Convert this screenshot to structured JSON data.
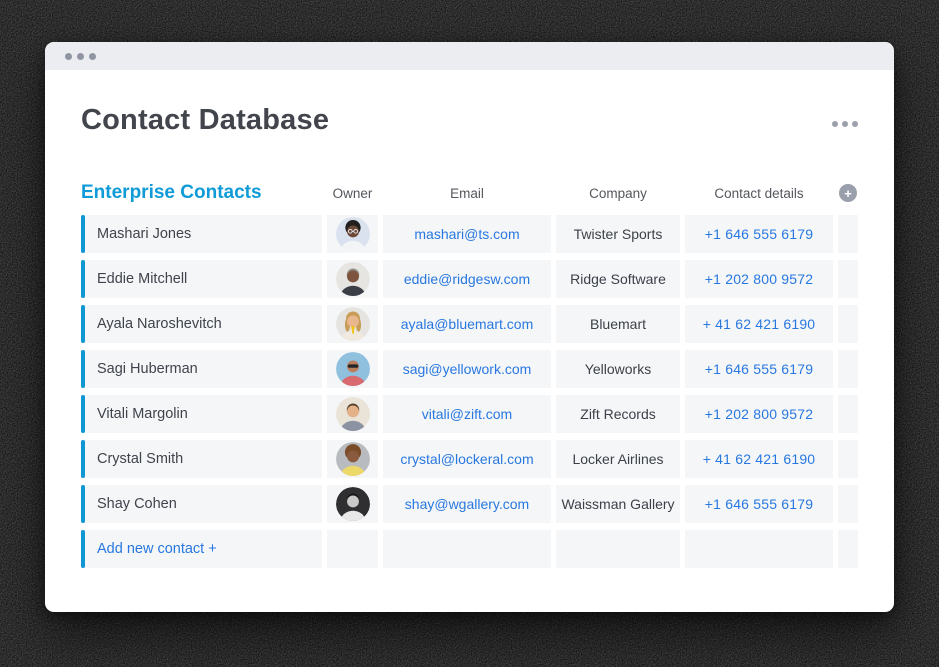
{
  "colors": {
    "board_blue": "#0f9bd7",
    "row_accent": "#0f97d4",
    "link_blue": "#2878e0",
    "row_bg": "#f5f6f8",
    "plus_bg": "#9aa0ab"
  },
  "window": {
    "titlebar_icon": "window-dots"
  },
  "header": {
    "title": "Contact Database",
    "menu_icon": "ellipsis-horizontal"
  },
  "board": {
    "title": "Enterprise Contacts",
    "columns": {
      "owner": "Owner",
      "email": "Email",
      "company": "Company",
      "contact": "Contact details"
    },
    "add_column_icon": "plus",
    "add_row_label": "Add new contact +",
    "rows": [
      {
        "name": "Mashari Jones",
        "email": "mashari@ts.com",
        "company": "Twister Sports",
        "phone": "+1 646 555 6179",
        "avatar": {
          "bg": "#d9e2ee",
          "skin": "#6d4a38",
          "hair": "#241f1f",
          "shirt": "#f2f4f6",
          "hairstyle": "afro",
          "eyewear": "glasses",
          "accessory": ""
        }
      },
      {
        "name": "Eddie Mitchell",
        "email": "eddie@ridgesw.com",
        "company": "Ridge Software",
        "phone": "+1 202 800 9572",
        "avatar": {
          "bg": "#e7e5e1",
          "skin": "#7d543e",
          "hair": "#8f8d86",
          "shirt": "#3b3e47",
          "hairstyle": "short",
          "eyewear": "none",
          "accessory": ""
        }
      },
      {
        "name": "Ayala Naroshevitch",
        "email": "ayala@bluemart.com",
        "company": "Bluemart",
        "phone": "+ 41 62 421 6190",
        "avatar": {
          "bg": "#e6e4e0",
          "skin": "#e9b68e",
          "hair": "#c79d58",
          "shirt": "#efe9df",
          "hairstyle": "long",
          "eyewear": "none",
          "accessory": "#f2c410"
        }
      },
      {
        "name": "Sagi Huberman",
        "email": "sagi@yellowork.com",
        "company": "Yelloworks",
        "phone": "+1 646 555 6179",
        "avatar": {
          "bg": "#8fc0dd",
          "skin": "#b97f5c",
          "hair": "#b97f5c",
          "shirt": "#d96a70",
          "hairstyle": "bald",
          "eyewear": "sunglasses",
          "accessory": ""
        }
      },
      {
        "name": "Vitali Margolin",
        "email": "vitali@zift.com",
        "company": "Zift Records",
        "phone": "+1 202 800 9572",
        "avatar": {
          "bg": "#e9e3d8",
          "skin": "#e4b288",
          "hair": "#57402b",
          "shirt": "#8b93a3",
          "hairstyle": "short",
          "eyewear": "none",
          "accessory": ""
        }
      },
      {
        "name": "Crystal Smith",
        "email": "crystal@lockeral.com",
        "company": "Locker Airlines",
        "phone": "+ 41 62 421 6190",
        "avatar": {
          "bg": "#b8bbbf",
          "skin": "#8a5a3e",
          "hair": "#7b4c28",
          "shirt": "#ecd96a",
          "hairstyle": "curly",
          "eyewear": "none",
          "accessory": ""
        }
      },
      {
        "name": "Shay Cohen",
        "email": "shay@wgallery.com",
        "company": "Waissman Gallery",
        "phone": "+1 646 555 6179",
        "avatar": {
          "bg": "#2f2f31",
          "skin": "#c9c9c9",
          "hair": "#161616",
          "shirt": "#e8e8e8",
          "hairstyle": "short",
          "eyewear": "none",
          "accessory": ""
        }
      }
    ]
  }
}
